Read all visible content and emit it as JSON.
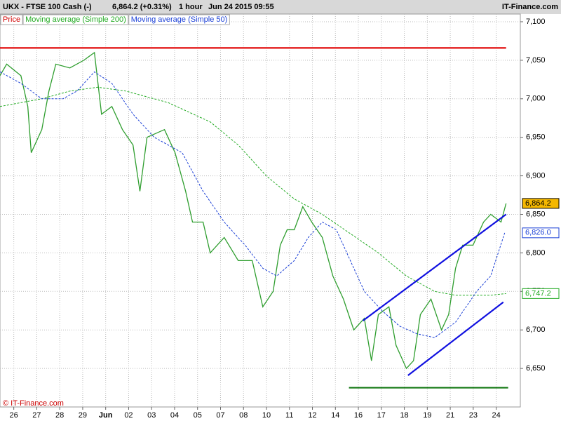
{
  "header": {
    "symbol": "UKX - FTSE 100 Cash (-)",
    "quote": "6,864.2 (+0.31%)",
    "interval": "1 hour",
    "datetime": "Jun 24 2015 09:55",
    "brand": "IT-Finance.com"
  },
  "footer": "© IT-Finance.com",
  "chart_data": {
    "type": "line",
    "xlim": [
      -0.6,
      22.05
    ],
    "ylim": [
      6600,
      7110
    ],
    "grid": true,
    "legend": "top-left",
    "xticks": [
      {
        "value": 0,
        "label": "26"
      },
      {
        "value": 1,
        "label": "27"
      },
      {
        "value": 2,
        "label": "28"
      },
      {
        "value": 3,
        "label": "29"
      },
      {
        "value": 4,
        "label": "Jun"
      },
      {
        "value": 5,
        "label": "02"
      },
      {
        "value": 6,
        "label": "03"
      },
      {
        "value": 7,
        "label": "04"
      },
      {
        "value": 8,
        "label": "05"
      },
      {
        "value": 9,
        "label": "07"
      },
      {
        "value": 10,
        "label": "08"
      },
      {
        "value": 11,
        "label": "10"
      },
      {
        "value": 12,
        "label": "11"
      },
      {
        "value": 13,
        "label": "12"
      },
      {
        "value": 14,
        "label": "14"
      },
      {
        "value": 15,
        "label": "16"
      },
      {
        "value": 16,
        "label": "17"
      },
      {
        "value": 17,
        "label": "18"
      },
      {
        "value": 18,
        "label": "19"
      },
      {
        "value": 19,
        "label": "21"
      },
      {
        "value": 20,
        "label": "23"
      },
      {
        "value": 21,
        "label": "24"
      }
    ],
    "yticks": [
      {
        "value": 6650,
        "label": "6,650"
      },
      {
        "value": 6700,
        "label": "6,700"
      },
      {
        "value": 6750,
        "label": "6,750"
      },
      {
        "value": 6800,
        "label": "6,800"
      },
      {
        "value": 6850,
        "label": "6,850"
      },
      {
        "value": 6900,
        "label": "6,900"
      },
      {
        "value": 6950,
        "label": "6,950"
      },
      {
        "value": 7000,
        "label": "7,000"
      },
      {
        "value": 7050,
        "label": "7,050"
      },
      {
        "value": 7100,
        "label": "7,100"
      }
    ],
    "series": [
      {
        "name": "Price",
        "color": "#d00000",
        "line_color": "#2f9e2f",
        "dash": false,
        "x": [
          -0.6,
          -0.31,
          0.31,
          0.61,
          0.76,
          1.22,
          1.53,
          1.83,
          2.44,
          3.05,
          3.51,
          3.82,
          4.27,
          4.73,
          5.19,
          5.49,
          5.8,
          6.56,
          7.02,
          7.48,
          7.78,
          8.24,
          8.55,
          9.16,
          9.77,
          10.38,
          10.84,
          11.29,
          11.6,
          11.9,
          12.21,
          12.58,
          12.97,
          13.43,
          13.89,
          14.35,
          14.8,
          15.26,
          15.57,
          15.87,
          16.33,
          16.64,
          17.09,
          17.4,
          17.7,
          18.16,
          18.62,
          18.93,
          19.23,
          19.54,
          19.99,
          20.45,
          20.76,
          21.21,
          21.43
        ],
        "values": [
          7030,
          7045,
          7030,
          6990,
          6930,
          6960,
          7010,
          7045,
          7040,
          7050,
          7060,
          6980,
          6990,
          6960,
          6940,
          6880,
          6950,
          6960,
          6930,
          6880,
          6840,
          6840,
          6800,
          6820,
          6790,
          6790,
          6730,
          6750,
          6810,
          6830,
          6830,
          6860,
          6840,
          6820,
          6770,
          6740,
          6700,
          6715,
          6660,
          6720,
          6730,
          6680,
          6650,
          6660,
          6720,
          6740,
          6700,
          6720,
          6780,
          6810,
          6810,
          6840,
          6850,
          6840,
          6864.2
        ]
      },
      {
        "name": "Moving average (Simple 200)",
        "color": "#22aa22",
        "line_color": "#22aa22",
        "dash": true,
        "x": [
          -0.6,
          1.22,
          2.44,
          3.66,
          4.88,
          6.72,
          8.55,
          9.77,
          10.99,
          12.21,
          13.43,
          14.65,
          15.87,
          17.09,
          18.32,
          19.23,
          20.76,
          21.43
        ],
        "values": [
          6990,
          7000,
          7010,
          7015,
          7010,
          6995,
          6970,
          6940,
          6900,
          6870,
          6850,
          6825,
          6800,
          6770,
          6750,
          6745,
          6745,
          6747.2
        ]
      },
      {
        "name": "Moving average (Simple 50)",
        "color": "#1a3fd6",
        "line_color": "#1a3fd6",
        "dash": true,
        "x": [
          -0.6,
          0.31,
          1.22,
          2.14,
          2.75,
          3.51,
          4.27,
          5.19,
          6.11,
          7.33,
          8.24,
          9.16,
          10.07,
          10.84,
          11.45,
          12.21,
          12.82,
          13.43,
          14.04,
          14.65,
          15.26,
          16.03,
          16.79,
          17.55,
          18.32,
          19.23,
          20.15,
          20.76,
          21.37
        ],
        "values": [
          7035,
          7020,
          7000,
          7000,
          7010,
          7035,
          7020,
          6980,
          6950,
          6930,
          6880,
          6840,
          6810,
          6780,
          6770,
          6790,
          6820,
          6840,
          6830,
          6790,
          6750,
          6725,
          6705,
          6695,
          6690,
          6710,
          6750,
          6770,
          6826.0
        ]
      }
    ],
    "last_values": [
      {
        "value": 6864.2,
        "label": "6,864.2",
        "color": "#000000",
        "background": "#f5b800"
      },
      {
        "value": 6826.0,
        "label": "6,826.0",
        "color": "#1a3fd6",
        "background": "#ffffff"
      },
      {
        "value": 6747.2,
        "label": "6,747.2",
        "color": "#22aa22",
        "background": "#ffffff"
      }
    ],
    "drawings": [
      {
        "x": [
          -0.6,
          21.43
        ],
        "y": [
          7066,
          7066
        ],
        "color": "#e00000"
      },
      {
        "x": [
          14.59,
          21.52
        ],
        "y": [
          6625,
          6625
        ],
        "color": "#117711"
      },
      {
        "x": [
          15.2,
          21.43
        ],
        "y": [
          6712,
          6850
        ],
        "color": "#1010e0"
      },
      {
        "x": [
          17.16,
          21.31
        ],
        "y": [
          6641,
          6736
        ],
        "color": "#1010e0"
      }
    ]
  }
}
